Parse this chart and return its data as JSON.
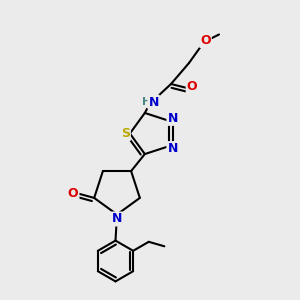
{
  "bg_color": "#ebebeb",
  "atom_colors": {
    "C": "#000000",
    "N": "#0000cc",
    "O": "#dd0000",
    "S": "#bbaa00",
    "H": "#4a8888"
  },
  "bond_color": "#000000",
  "bond_width": 1.5,
  "font_size_atom": 9,
  "figsize": [
    3.0,
    3.0
  ],
  "dpi": 100
}
